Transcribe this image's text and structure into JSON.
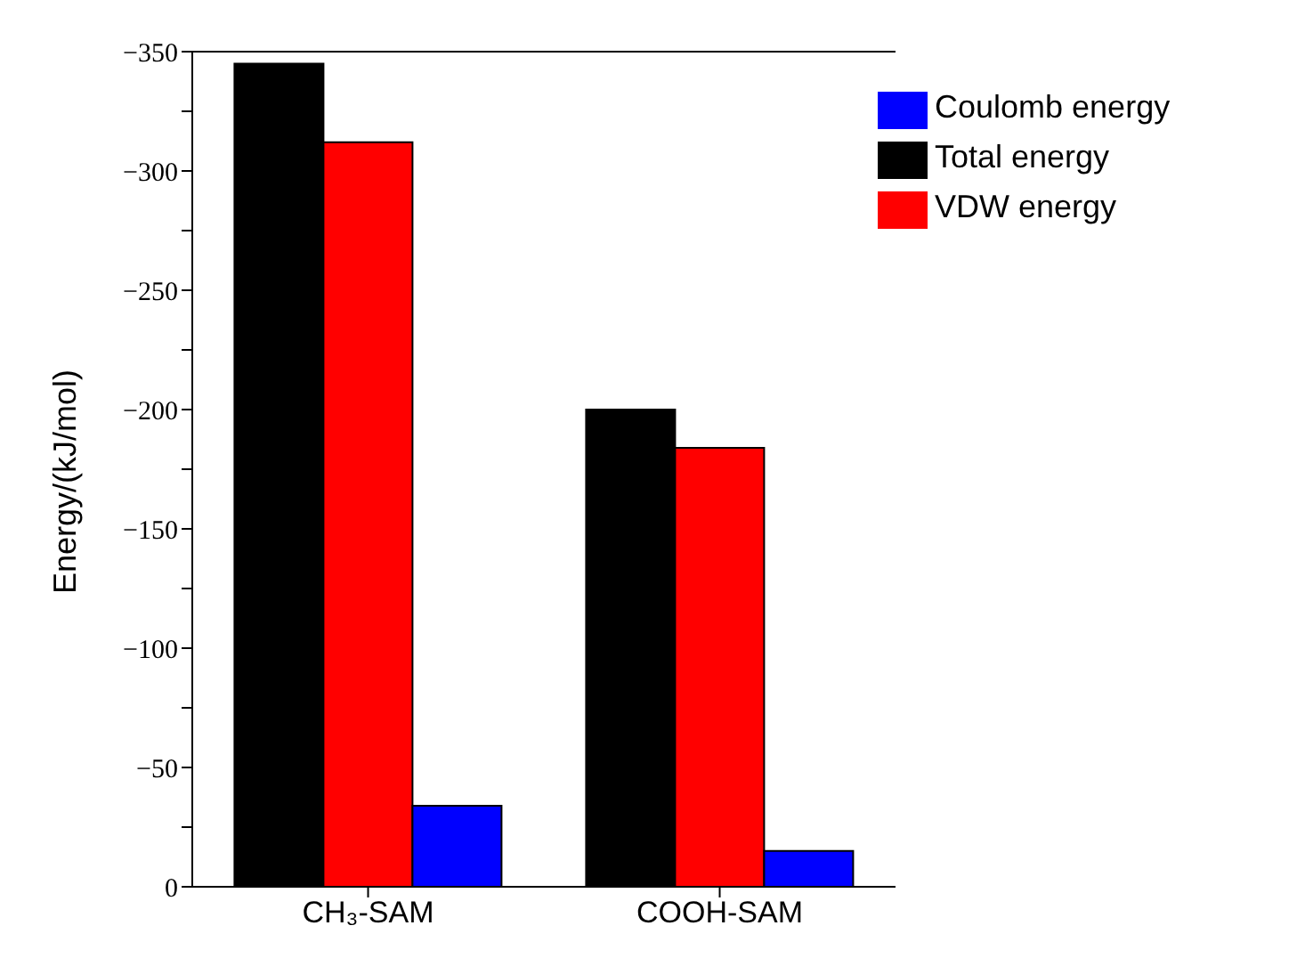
{
  "chart_data": {
    "type": "bar",
    "ylabel": "Energy/(kJ/mol)",
    "categories": [
      "CH₃-SAM",
      "COOH-SAM"
    ],
    "series": [
      {
        "name": "Total energy",
        "color": "#000000",
        "values": [
          -345,
          -200
        ]
      },
      {
        "name": "VDW energy",
        "color": "#ff0000",
        "values": [
          -312,
          -184
        ]
      },
      {
        "name": "Coulomb energy",
        "color": "#0000ff",
        "values": [
          -34,
          -15
        ]
      }
    ],
    "ylim": [
      0,
      -350
    ],
    "yticks": [
      0,
      {
        "value": -25,
        "label": null
      },
      -50,
      {
        "value": -75,
        "label": null
      },
      -100,
      {
        "value": -125,
        "label": null
      },
      -150,
      {
        "value": -175,
        "label": null
      },
      -200,
      {
        "value": -225,
        "label": null
      },
      -250,
      {
        "value": -275,
        "label": null
      },
      -300,
      {
        "value": -325,
        "label": null
      },
      -350
    ],
    "legend": "top right",
    "grid": false
  }
}
